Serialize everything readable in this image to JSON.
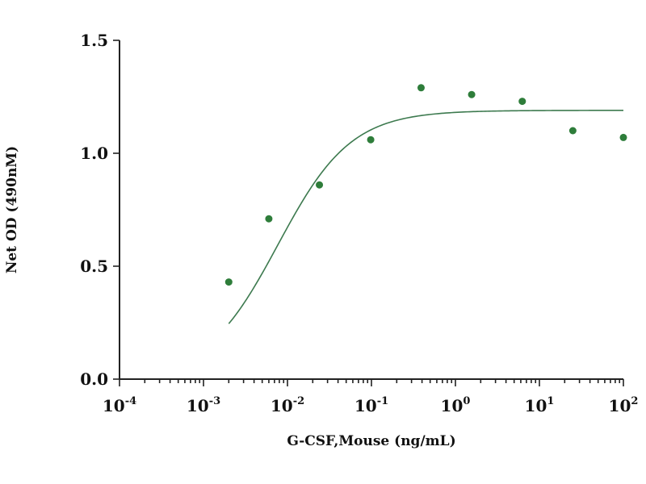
{
  "chart_data": {
    "type": "scatter",
    "xlabel": "G-CSF,Mouse (ng/mL)",
    "ylabel": "Net OD (490nM)",
    "x_scale": "log",
    "xlim": [
      0.0001,
      100
    ],
    "ylim": [
      0.0,
      1.5
    ],
    "grid": false,
    "legend": "none",
    "colors": {
      "points": "#2e7d3a",
      "curve": "#3d7a4f",
      "axis": "#222222"
    },
    "y_ticks": [
      {
        "value": 0.0,
        "label": "0.0"
      },
      {
        "value": 0.5,
        "label": "0.5"
      },
      {
        "value": 1.0,
        "label": "1.0"
      },
      {
        "value": 1.5,
        "label": "1.5"
      }
    ],
    "x_ticks": [
      {
        "value": 0.0001,
        "base": "10",
        "exp": "-4"
      },
      {
        "value": 0.001,
        "base": "10",
        "exp": "-3"
      },
      {
        "value": 0.01,
        "base": "10",
        "exp": "-2"
      },
      {
        "value": 0.1,
        "base": "10",
        "exp": "-1"
      },
      {
        "value": 1,
        "base": "10",
        "exp": "0"
      },
      {
        "value": 10,
        "base": "10",
        "exp": "1"
      },
      {
        "value": 100,
        "base": "10",
        "exp": "2"
      }
    ],
    "series": [
      {
        "points": [
          {
            "x": 0.002,
            "y": 0.43
          },
          {
            "x": 0.006,
            "y": 0.71
          },
          {
            "x": 0.024,
            "y": 0.86
          },
          {
            "x": 0.098,
            "y": 1.06
          },
          {
            "x": 0.39,
            "y": 1.29
          },
          {
            "x": 1.56,
            "y": 1.26
          },
          {
            "x": 6.25,
            "y": 1.23
          },
          {
            "x": 25,
            "y": 1.1
          },
          {
            "x": 100,
            "y": 1.07
          }
        ]
      }
    ],
    "fit_curve": {
      "type": "4PL",
      "bottom": 0.0,
      "top": 1.19,
      "ec50": 0.0077,
      "hill": 1.0,
      "x_range": [
        0.002,
        100
      ]
    }
  }
}
